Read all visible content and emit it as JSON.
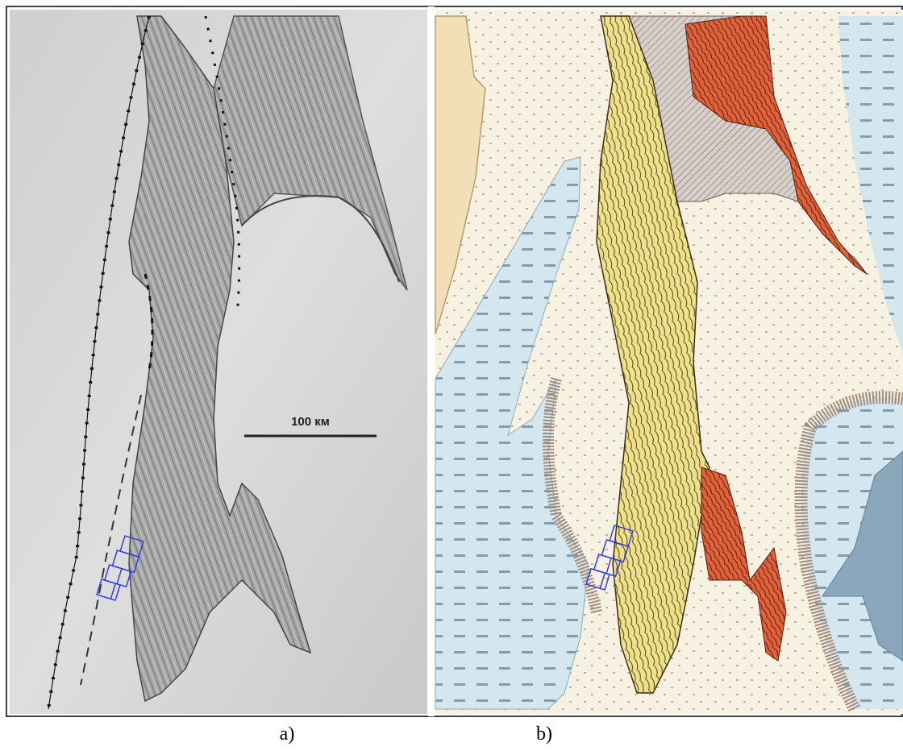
{
  "figure": {
    "panels": [
      {
        "label": "a)",
        "scale_label": "100 км"
      },
      {
        "label": "b)"
      }
    ]
  }
}
